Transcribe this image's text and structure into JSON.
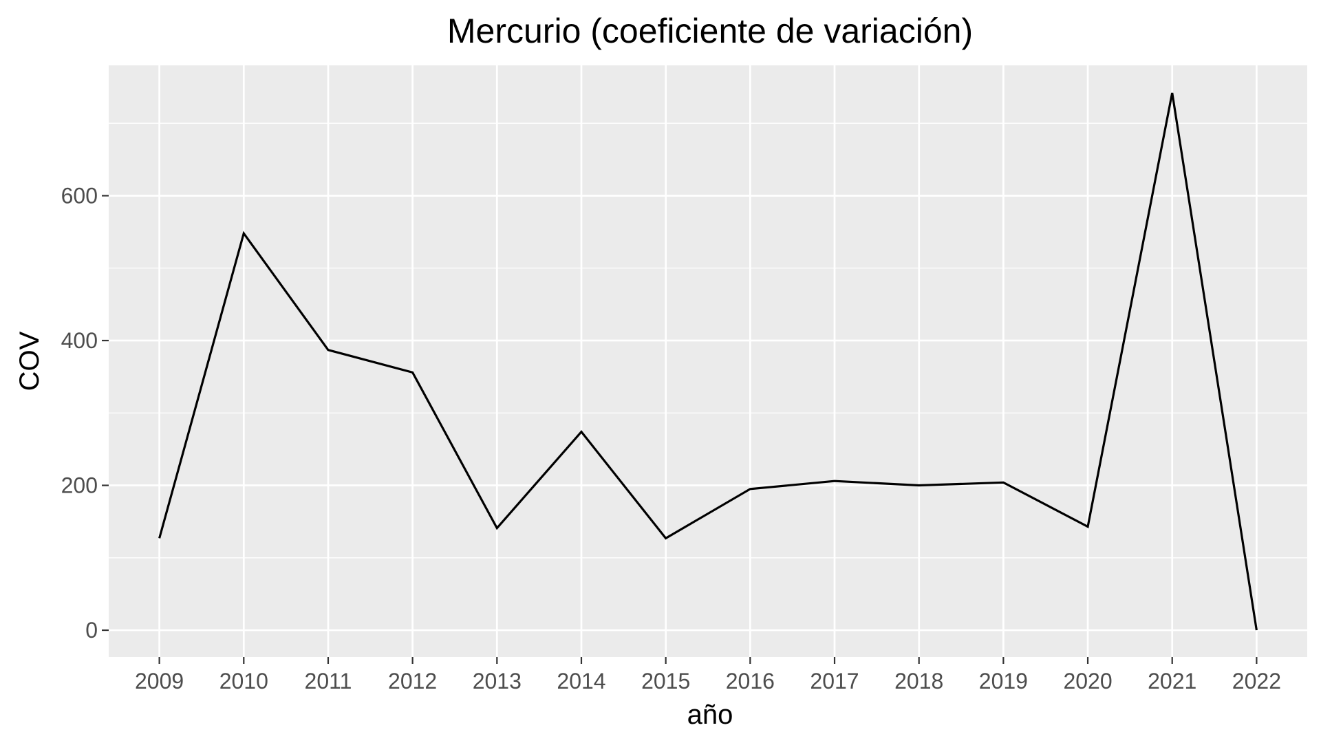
{
  "chart_data": {
    "type": "line",
    "title": "Mercurio (coeficiente de variación)",
    "xlabel": "año",
    "ylabel": "COV",
    "x": [
      2009,
      2010,
      2011,
      2012,
      2013,
      2014,
      2015,
      2016,
      2017,
      2018,
      2019,
      2020,
      2021,
      2022
    ],
    "series": [
      {
        "values": [
          127,
          548,
          387,
          356,
          141,
          274,
          127,
          195,
          206,
          200,
          204,
          143,
          742,
          0
        ]
      }
    ],
    "xticks": [
      "2009",
      "2010",
      "2011",
      "2012",
      "2013",
      "2014",
      "2015",
      "2016",
      "2017",
      "2018",
      "2019",
      "2020",
      "2021",
      "2022"
    ],
    "yticks": [
      "0",
      "200",
      "400",
      "600"
    ],
    "xlim": [
      2008.4,
      2022.6
    ],
    "ylim": [
      -37,
      780
    ],
    "grid": true,
    "legend": "none",
    "colors": {
      "panel_background": "#ebebeb",
      "grid_major": "#ffffff",
      "line": "#000000",
      "tick_label": "#4d4d4d"
    }
  }
}
